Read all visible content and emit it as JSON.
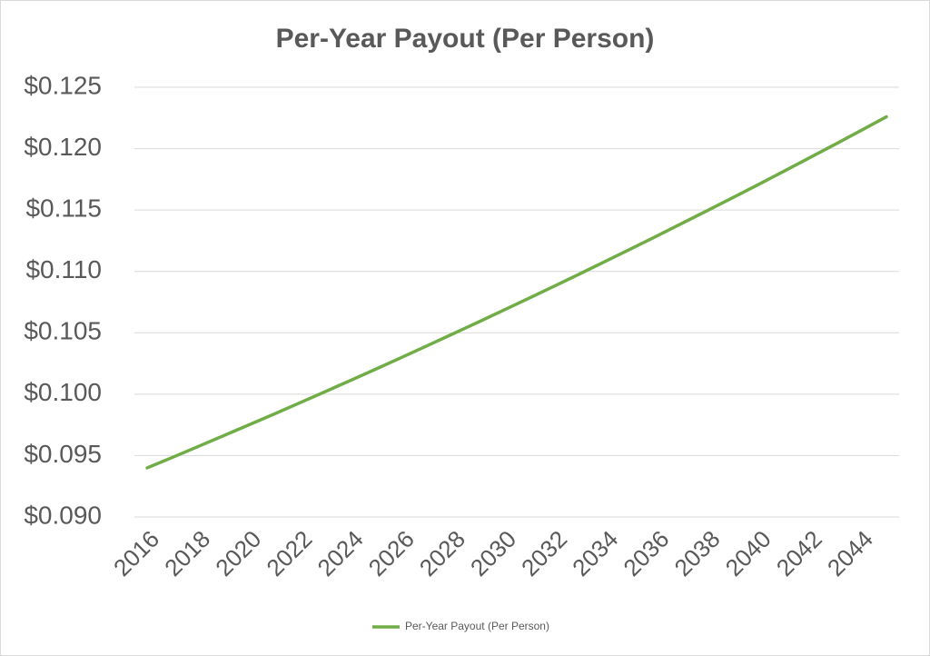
{
  "chart_data": {
    "type": "line",
    "title": "Per-Year Payout (Per Person)",
    "x": [
      2016,
      2017,
      2018,
      2019,
      2020,
      2021,
      2022,
      2023,
      2024,
      2025,
      2026,
      2027,
      2028,
      2029,
      2030,
      2031,
      2032,
      2033,
      2034,
      2035,
      2036,
      2037,
      2038,
      2039,
      2040,
      2041,
      2042,
      2043,
      2044,
      2045
    ],
    "series": [
      {
        "name": "Per-Year Payout (Per Person)",
        "color": "#70ad47",
        "values": [
          0.094,
          0.09486,
          0.09574,
          0.09662,
          0.09751,
          0.0984,
          0.09931,
          0.10022,
          0.10114,
          0.10207,
          0.10301,
          0.10396,
          0.10492,
          0.10588,
          0.10686,
          0.10784,
          0.10883,
          0.10983,
          0.11084,
          0.11186,
          0.11289,
          0.11393,
          0.11498,
          0.11603,
          0.1171,
          0.11818,
          0.11927,
          0.12036,
          0.12147,
          0.12259
        ]
      }
    ],
    "xlim": [
      2015.5,
      2045.5
    ],
    "xticks": [
      2016,
      2018,
      2020,
      2022,
      2024,
      2026,
      2028,
      2030,
      2032,
      2034,
      2036,
      2038,
      2040,
      2042,
      2044
    ],
    "ylim": [
      0.09,
      0.125
    ],
    "yticks": [
      {
        "value": 0.09,
        "label": "$0.090"
      },
      {
        "value": 0.095,
        "label": "$0.095"
      },
      {
        "value": 0.1,
        "label": "$0.100"
      },
      {
        "value": 0.105,
        "label": "$0.105"
      },
      {
        "value": 0.11,
        "label": "$0.110"
      },
      {
        "value": 0.115,
        "label": "$0.115"
      },
      {
        "value": 0.12,
        "label": "$0.120"
      },
      {
        "value": 0.125,
        "label": "$0.125"
      }
    ],
    "grid": true,
    "legend": "bottom"
  }
}
